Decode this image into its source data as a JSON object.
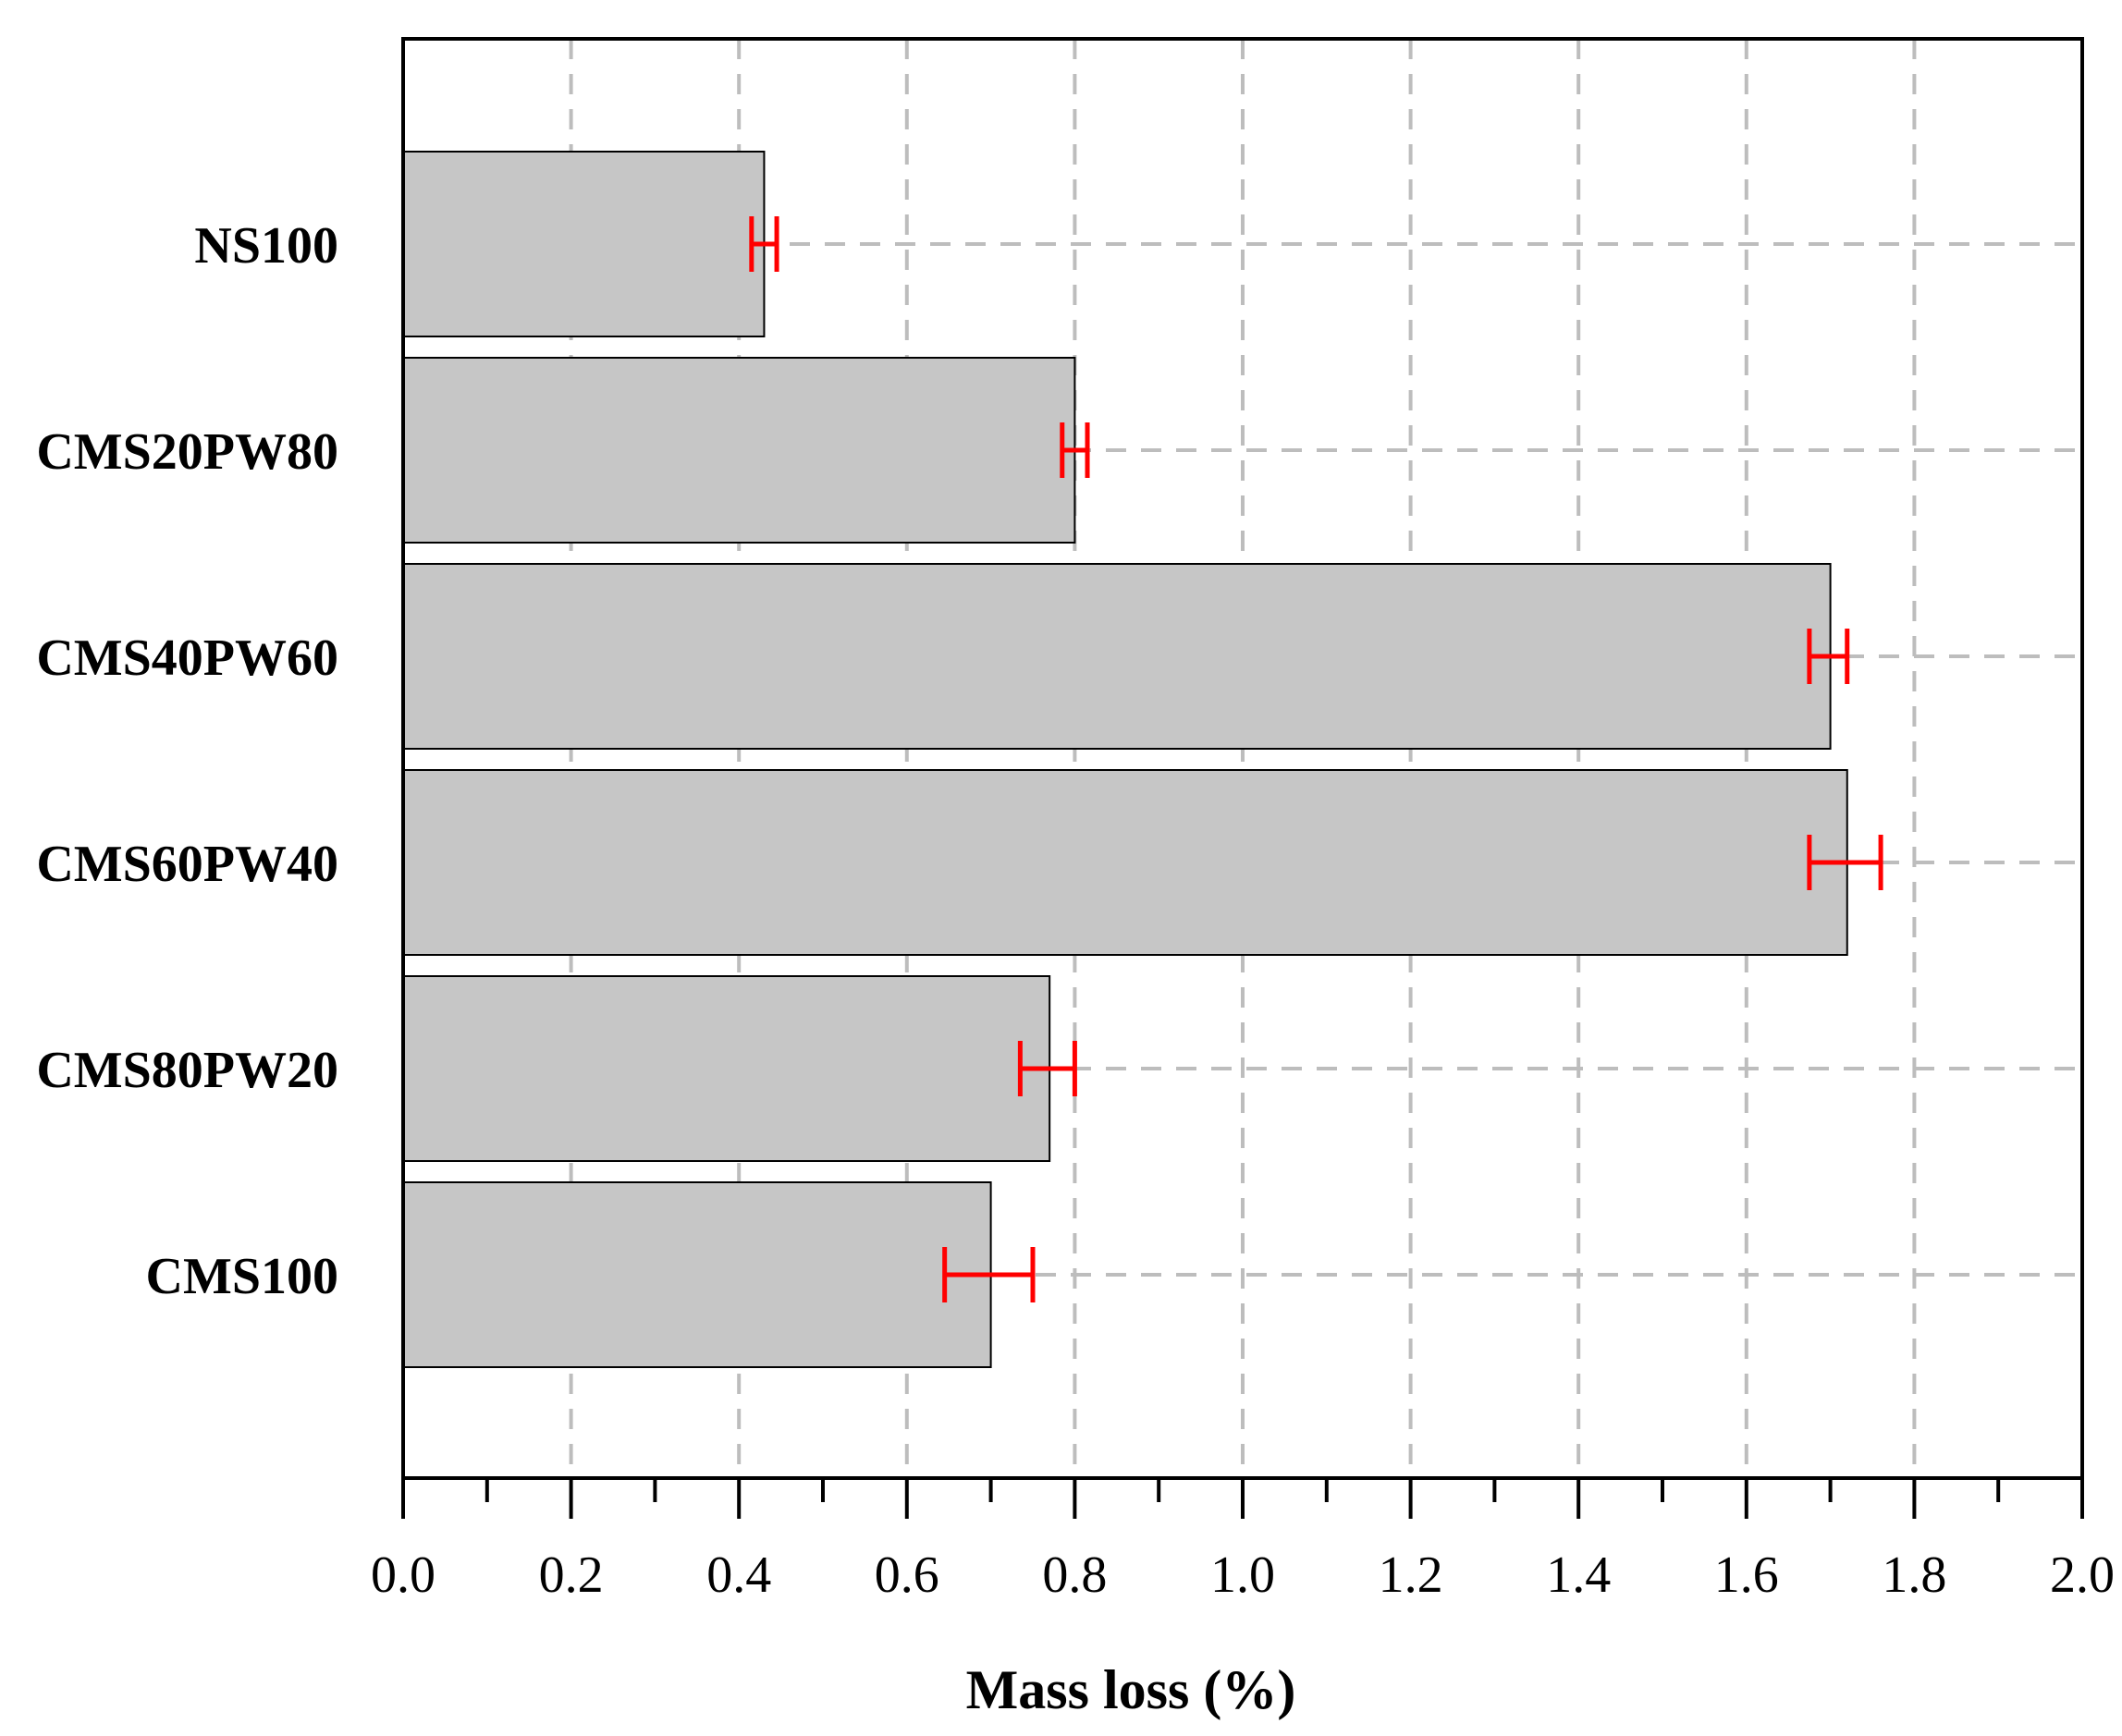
{
  "chart_data": {
    "type": "bar",
    "orientation": "horizontal",
    "title": "",
    "xlabel": "Mass loss (%)",
    "ylabel": "",
    "xlim": [
      0,
      2.0
    ],
    "x_ticks": [
      "0.0",
      "0.2",
      "0.4",
      "0.6",
      "0.8",
      "1.0",
      "1.2",
      "1.4",
      "1.6",
      "1.8",
      "2.0"
    ],
    "x_tick_values": [
      0.0,
      0.2,
      0.4,
      0.6,
      0.8,
      1.0,
      1.2,
      1.4,
      1.6,
      1.8,
      2.0
    ],
    "minor_tick_step": 0.1,
    "grid": true,
    "categories": [
      "NS100",
      "CMS20PW80",
      "CMS40PW60",
      "CMS60PW40",
      "CMS80PW20",
      "CMS100"
    ],
    "values": [
      0.43,
      0.8,
      1.7,
      1.72,
      0.77,
      0.7
    ],
    "error_low": [
      0.415,
      0.785,
      1.675,
      1.675,
      0.735,
      0.645
    ],
    "error_high": [
      0.445,
      0.815,
      1.72,
      1.76,
      0.8,
      0.75
    ],
    "bar_color": "#c6c6c6",
    "bar_edge_color": "#000000",
    "error_color": "#ff0000",
    "grid_color": "#bdbdbd"
  }
}
